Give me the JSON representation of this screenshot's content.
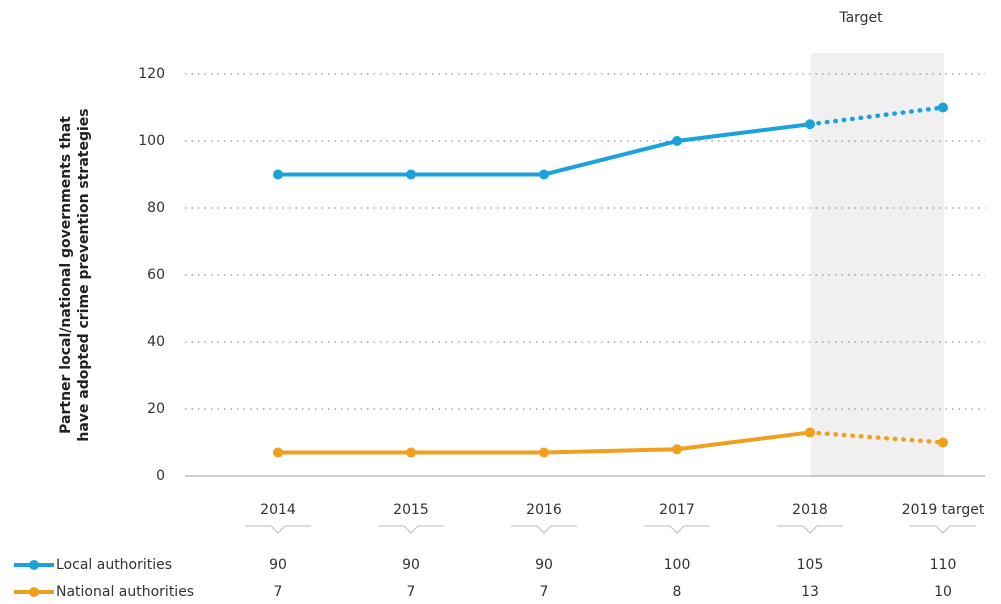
{
  "chart_data": {
    "type": "line",
    "ylabel": [
      "Partner local/national governments that",
      "have adopted crime prevention strategies"
    ],
    "annotation": "Target",
    "categories": [
      "2014",
      "2015",
      "2016",
      "2017",
      "2018",
      "2019 target"
    ],
    "series": [
      {
        "name": "Local authorities",
        "color": "#1ba1dc",
        "values": [
          90,
          90,
          90,
          100,
          105,
          110
        ]
      },
      {
        "name": "National authorities",
        "color": "#f0a01c",
        "values": [
          7,
          7,
          7,
          8,
          13,
          10
        ]
      }
    ],
    "ylim": [
      0,
      120
    ],
    "yticks": [
      0,
      20,
      40,
      60,
      80,
      100,
      120
    ],
    "grid": true
  }
}
